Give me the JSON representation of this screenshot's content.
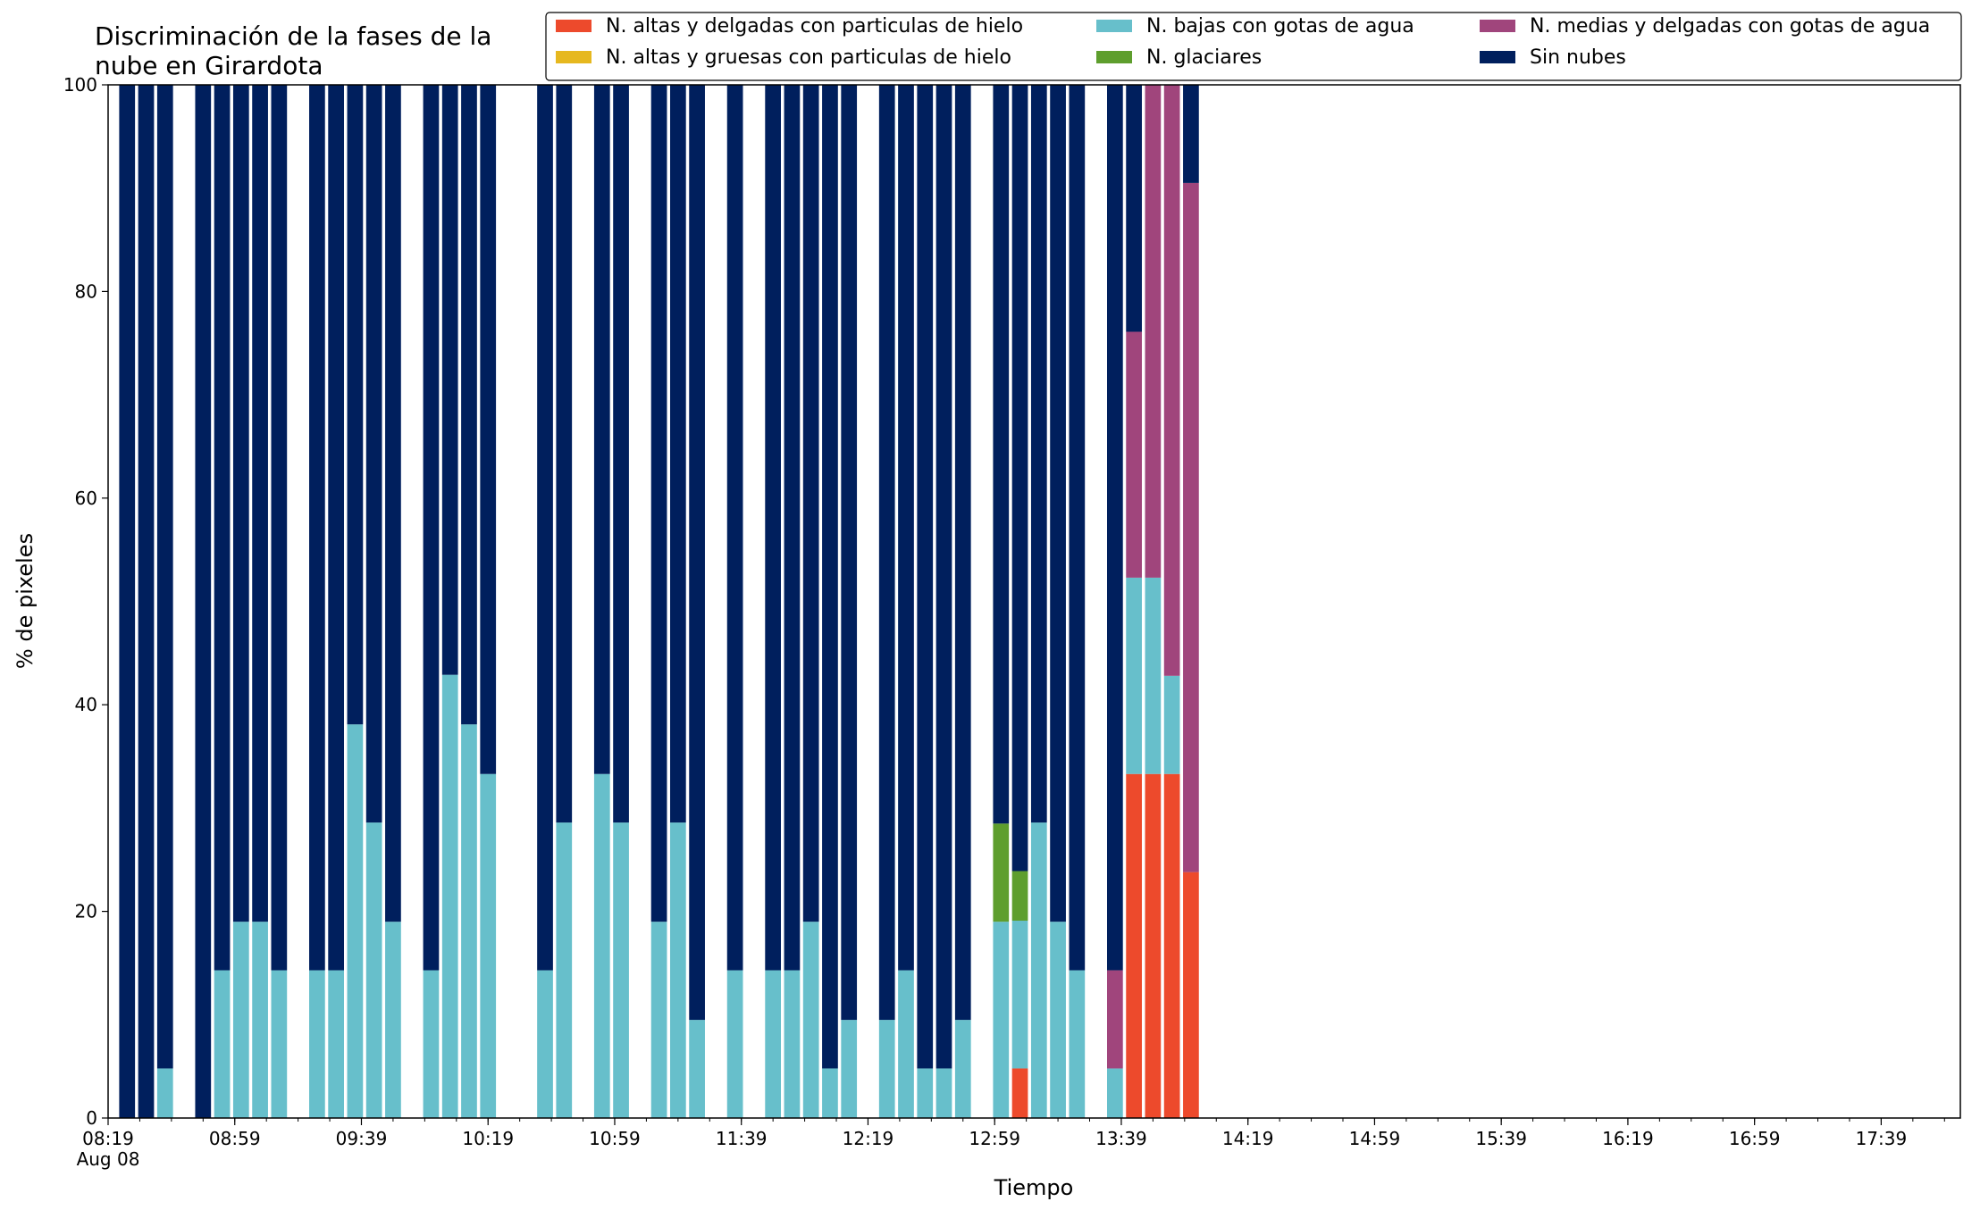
{
  "chart_data": {
    "type": "bar",
    "stacked": true,
    "title": [
      "Discriminación de la fases de la",
      "nube en Girardota"
    ],
    "xlabel": "Tiempo",
    "ylabel": "% de pixeles",
    "ylim": [
      0,
      100
    ],
    "yticks": [
      0,
      20,
      40,
      60,
      80,
      100
    ],
    "x_date": "Aug 08",
    "x_major_ticks": [
      "08:19",
      "08:59",
      "09:39",
      "10:19",
      "10:59",
      "11:39",
      "12:19",
      "12:59",
      "13:39",
      "14:19",
      "14:59",
      "15:39",
      "16:19",
      "16:59",
      "17:39"
    ],
    "x_minor_interval_min": 10,
    "x_range": [
      "08:19",
      "18:04"
    ],
    "bar_width_min": 5,
    "legend_location": "upper right",
    "legend_ncol": 3,
    "grid": false,
    "series_order": [
      "altas_delgadas",
      "altas_gruesas",
      "bajas",
      "glaciares",
      "medias",
      "sin_nubes"
    ],
    "legend_order": [
      "altas_delgadas",
      "altas_gruesas",
      "bajas",
      "glaciares",
      "medias",
      "sin_nubes"
    ],
    "series": {
      "altas_delgadas": {
        "name": "N. altas y delgadas con particulas de hielo",
        "color": "#ed4a2c"
      },
      "altas_gruesas": {
        "name": "N. altas y gruesas con particulas de hielo",
        "color": "#e6b81f"
      },
      "bajas": {
        "name": "N. bajas con gotas de agua",
        "color": "#67bfcb"
      },
      "glaciares": {
        "name": "N. glaciares",
        "color": "#5e9e2d"
      },
      "medias": {
        "name": "N. medias y delgadas con gotas de agua",
        "color": "#a0457c"
      },
      "sin_nubes": {
        "name": "Sin nubes",
        "color": "#001f5d"
      }
    },
    "bars": [
      {
        "time": "08:25",
        "altas_delgadas": 0,
        "altas_gruesas": 0,
        "bajas": 0,
        "glaciares": 0,
        "medias": 0,
        "sin_nubes": 100
      },
      {
        "time": "08:31",
        "altas_delgadas": 0,
        "altas_gruesas": 0,
        "bajas": 0,
        "glaciares": 0,
        "medias": 0,
        "sin_nubes": 100
      },
      {
        "time": "08:37",
        "altas_delgadas": 0,
        "altas_gruesas": 0,
        "bajas": 4.8,
        "glaciares": 0,
        "medias": 0,
        "sin_nubes": 95.2
      },
      {
        "time": "08:49",
        "altas_delgadas": 0,
        "altas_gruesas": 0,
        "bajas": 0,
        "glaciares": 0,
        "medias": 0,
        "sin_nubes": 100
      },
      {
        "time": "08:55",
        "altas_delgadas": 0,
        "altas_gruesas": 0,
        "bajas": 14.3,
        "glaciares": 0,
        "medias": 0,
        "sin_nubes": 85.7
      },
      {
        "time": "09:01",
        "altas_delgadas": 0,
        "altas_gruesas": 0,
        "bajas": 19.0,
        "glaciares": 0,
        "medias": 0,
        "sin_nubes": 81.0
      },
      {
        "time": "09:07",
        "altas_delgadas": 0,
        "altas_gruesas": 0,
        "bajas": 19.0,
        "glaciares": 0,
        "medias": 0,
        "sin_nubes": 81.0
      },
      {
        "time": "09:13",
        "altas_delgadas": 0,
        "altas_gruesas": 0,
        "bajas": 14.3,
        "glaciares": 0,
        "medias": 0,
        "sin_nubes": 85.7
      },
      {
        "time": "09:25",
        "altas_delgadas": 0,
        "altas_gruesas": 0,
        "bajas": 14.3,
        "glaciares": 0,
        "medias": 0,
        "sin_nubes": 85.7
      },
      {
        "time": "09:31",
        "altas_delgadas": 0,
        "altas_gruesas": 0,
        "bajas": 14.3,
        "glaciares": 0,
        "medias": 0,
        "sin_nubes": 85.7
      },
      {
        "time": "09:37",
        "altas_delgadas": 0,
        "altas_gruesas": 0,
        "bajas": 38.1,
        "glaciares": 0,
        "medias": 0,
        "sin_nubes": 61.9
      },
      {
        "time": "09:43",
        "altas_delgadas": 0,
        "altas_gruesas": 0,
        "bajas": 28.6,
        "glaciares": 0,
        "medias": 0,
        "sin_nubes": 71.4
      },
      {
        "time": "09:49",
        "altas_delgadas": 0,
        "altas_gruesas": 0,
        "bajas": 19.0,
        "glaciares": 0,
        "medias": 0,
        "sin_nubes": 81.0
      },
      {
        "time": "10:01",
        "altas_delgadas": 0,
        "altas_gruesas": 0,
        "bajas": 14.3,
        "glaciares": 0,
        "medias": 0,
        "sin_nubes": 85.7
      },
      {
        "time": "10:07",
        "altas_delgadas": 0,
        "altas_gruesas": 0,
        "bajas": 42.9,
        "glaciares": 0,
        "medias": 0,
        "sin_nubes": 57.1
      },
      {
        "time": "10:13",
        "altas_delgadas": 0,
        "altas_gruesas": 0,
        "bajas": 38.1,
        "glaciares": 0,
        "medias": 0,
        "sin_nubes": 61.9
      },
      {
        "time": "10:19",
        "altas_delgadas": 0,
        "altas_gruesas": 0,
        "bajas": 33.3,
        "glaciares": 0,
        "medias": 0,
        "sin_nubes": 66.7
      },
      {
        "time": "10:37",
        "altas_delgadas": 0,
        "altas_gruesas": 0,
        "bajas": 14.3,
        "glaciares": 0,
        "medias": 0,
        "sin_nubes": 85.7
      },
      {
        "time": "10:43",
        "altas_delgadas": 0,
        "altas_gruesas": 0,
        "bajas": 28.6,
        "glaciares": 0,
        "medias": 0,
        "sin_nubes": 71.4
      },
      {
        "time": "10:55",
        "altas_delgadas": 0,
        "altas_gruesas": 0,
        "bajas": 33.3,
        "glaciares": 0,
        "medias": 0,
        "sin_nubes": 66.7
      },
      {
        "time": "11:01",
        "altas_delgadas": 0,
        "altas_gruesas": 0,
        "bajas": 28.6,
        "glaciares": 0,
        "medias": 0,
        "sin_nubes": 71.4
      },
      {
        "time": "11:13",
        "altas_delgadas": 0,
        "altas_gruesas": 0,
        "bajas": 19.0,
        "glaciares": 0,
        "medias": 0,
        "sin_nubes": 81.0
      },
      {
        "time": "11:19",
        "altas_delgadas": 0,
        "altas_gruesas": 0,
        "bajas": 28.6,
        "glaciares": 0,
        "medias": 0,
        "sin_nubes": 71.4
      },
      {
        "time": "11:25",
        "altas_delgadas": 0,
        "altas_gruesas": 0,
        "bajas": 9.5,
        "glaciares": 0,
        "medias": 0,
        "sin_nubes": 90.5
      },
      {
        "time": "11:37",
        "altas_delgadas": 0,
        "altas_gruesas": 0,
        "bajas": 14.3,
        "glaciares": 0,
        "medias": 0,
        "sin_nubes": 85.7
      },
      {
        "time": "11:49",
        "altas_delgadas": 0,
        "altas_gruesas": 0,
        "bajas": 14.3,
        "glaciares": 0,
        "medias": 0,
        "sin_nubes": 85.7
      },
      {
        "time": "11:55",
        "altas_delgadas": 0,
        "altas_gruesas": 0,
        "bajas": 14.3,
        "glaciares": 0,
        "medias": 0,
        "sin_nubes": 85.7
      },
      {
        "time": "12:01",
        "altas_delgadas": 0,
        "altas_gruesas": 0,
        "bajas": 19.0,
        "glaciares": 0,
        "medias": 0,
        "sin_nubes": 81.0
      },
      {
        "time": "12:07",
        "altas_delgadas": 0,
        "altas_gruesas": 0,
        "bajas": 4.8,
        "glaciares": 0,
        "medias": 0,
        "sin_nubes": 95.2
      },
      {
        "time": "12:13",
        "altas_delgadas": 0,
        "altas_gruesas": 0,
        "bajas": 9.5,
        "glaciares": 0,
        "medias": 0,
        "sin_nubes": 90.5
      },
      {
        "time": "12:25",
        "altas_delgadas": 0,
        "altas_gruesas": 0,
        "bajas": 9.5,
        "glaciares": 0,
        "medias": 0,
        "sin_nubes": 90.5
      },
      {
        "time": "12:31",
        "altas_delgadas": 0,
        "altas_gruesas": 0,
        "bajas": 14.3,
        "glaciares": 0,
        "medias": 0,
        "sin_nubes": 85.7
      },
      {
        "time": "12:37",
        "altas_delgadas": 0,
        "altas_gruesas": 0,
        "bajas": 4.8,
        "glaciares": 0,
        "medias": 0,
        "sin_nubes": 95.2
      },
      {
        "time": "12:43",
        "altas_delgadas": 0,
        "altas_gruesas": 0,
        "bajas": 4.8,
        "glaciares": 0,
        "medias": 0,
        "sin_nubes": 95.2
      },
      {
        "time": "12:49",
        "altas_delgadas": 0,
        "altas_gruesas": 0,
        "bajas": 9.5,
        "glaciares": 0,
        "medias": 0,
        "sin_nubes": 90.5
      },
      {
        "time": "13:01",
        "altas_delgadas": 0,
        "altas_gruesas": 0,
        "bajas": 19.0,
        "glaciares": 9.5,
        "medias": 0,
        "sin_nubes": 71.5
      },
      {
        "time": "13:07",
        "altas_delgadas": 4.8,
        "altas_gruesas": 0,
        "bajas": 14.3,
        "glaciares": 4.8,
        "medias": 0,
        "sin_nubes": 76.1
      },
      {
        "time": "13:13",
        "altas_delgadas": 0,
        "altas_gruesas": 0,
        "bajas": 28.6,
        "glaciares": 0,
        "medias": 0,
        "sin_nubes": 71.4
      },
      {
        "time": "13:19",
        "altas_delgadas": 0,
        "altas_gruesas": 0,
        "bajas": 19.0,
        "glaciares": 0,
        "medias": 0,
        "sin_nubes": 81.0
      },
      {
        "time": "13:25",
        "altas_delgadas": 0,
        "altas_gruesas": 0,
        "bajas": 14.3,
        "glaciares": 0,
        "medias": 0,
        "sin_nubes": 85.7
      },
      {
        "time": "13:37",
        "altas_delgadas": 0,
        "altas_gruesas": 0,
        "bajas": 4.8,
        "glaciares": 0,
        "medias": 9.5,
        "sin_nubes": 85.7
      },
      {
        "time": "13:43",
        "altas_delgadas": 33.3,
        "altas_gruesas": 0,
        "bajas": 19.0,
        "glaciares": 0,
        "medias": 23.8,
        "sin_nubes": 23.9
      },
      {
        "time": "13:49",
        "altas_delgadas": 33.3,
        "altas_gruesas": 0,
        "bajas": 19.0,
        "glaciares": 0,
        "medias": 47.7,
        "sin_nubes": 0
      },
      {
        "time": "13:55",
        "altas_delgadas": 33.3,
        "altas_gruesas": 0,
        "bajas": 9.5,
        "glaciares": 0,
        "medias": 57.2,
        "sin_nubes": 0
      },
      {
        "time": "14:01",
        "altas_delgadas": 23.8,
        "altas_gruesas": 0,
        "bajas": 0,
        "glaciares": 0,
        "medias": 66.7,
        "sin_nubes": 9.5
      }
    ]
  }
}
